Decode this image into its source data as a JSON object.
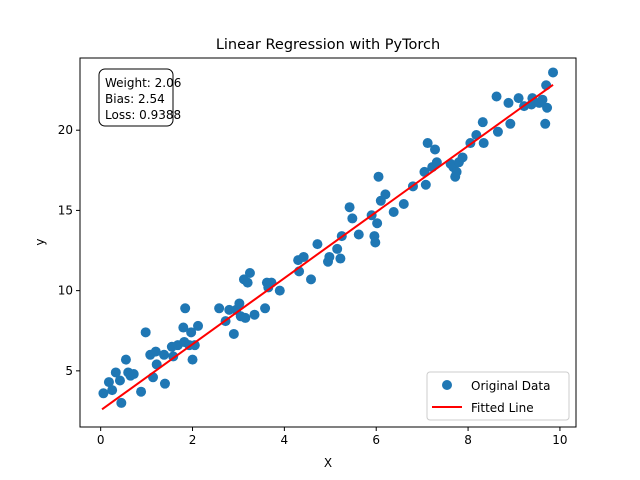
{
  "chart_data": {
    "type": "scatter",
    "title": "Linear Regression with PyTorch",
    "xlabel": "X",
    "ylabel": "y",
    "xlim": [
      -0.45,
      10.35
    ],
    "ylim": [
      1.5,
      24.5
    ],
    "x_ticks": [
      0,
      2,
      4,
      6,
      8,
      10
    ],
    "y_ticks": [
      5,
      10,
      15,
      20
    ],
    "grid": false,
    "legend_position": "lower-right",
    "annotation": {
      "lines": [
        "Weight: 2.06",
        "Bias: 2.54",
        "Loss: 0.9388"
      ]
    },
    "series": [
      {
        "name": "Original Data",
        "type": "scatter",
        "color": "#1f77b4",
        "points": [
          [
            0.06,
            3.6
          ],
          [
            0.18,
            4.3
          ],
          [
            0.25,
            3.8
          ],
          [
            0.33,
            4.9
          ],
          [
            0.42,
            4.4
          ],
          [
            0.45,
            3.0
          ],
          [
            0.55,
            5.7
          ],
          [
            0.6,
            4.9
          ],
          [
            0.65,
            4.7
          ],
          [
            0.72,
            4.8
          ],
          [
            0.88,
            3.7
          ],
          [
            0.98,
            7.4
          ],
          [
            1.08,
            6.0
          ],
          [
            1.14,
            4.6
          ],
          [
            1.2,
            6.2
          ],
          [
            1.22,
            5.4
          ],
          [
            1.38,
            6.0
          ],
          [
            1.4,
            4.2
          ],
          [
            1.55,
            6.5
          ],
          [
            1.58,
            5.9
          ],
          [
            1.68,
            6.6
          ],
          [
            1.8,
            7.7
          ],
          [
            1.82,
            6.8
          ],
          [
            1.84,
            8.9
          ],
          [
            1.93,
            6.6
          ],
          [
            1.97,
            7.4
          ],
          [
            2.0,
            5.7
          ],
          [
            2.05,
            6.6
          ],
          [
            2.12,
            7.8
          ],
          [
            2.58,
            8.9
          ],
          [
            2.72,
            8.1
          ],
          [
            2.8,
            8.8
          ],
          [
            2.9,
            7.3
          ],
          [
            2.95,
            8.8
          ],
          [
            3.02,
            9.2
          ],
          [
            3.05,
            8.4
          ],
          [
            3.12,
            10.7
          ],
          [
            3.15,
            8.3
          ],
          [
            3.2,
            10.5
          ],
          [
            3.25,
            11.1
          ],
          [
            3.35,
            8.5
          ],
          [
            3.58,
            8.9
          ],
          [
            3.62,
            10.5
          ],
          [
            3.65,
            10.2
          ],
          [
            3.72,
            10.5
          ],
          [
            3.9,
            10.0
          ],
          [
            4.3,
            11.9
          ],
          [
            4.32,
            11.2
          ],
          [
            4.42,
            12.1
          ],
          [
            4.58,
            10.7
          ],
          [
            4.72,
            12.9
          ],
          [
            4.95,
            11.8
          ],
          [
            4.98,
            12.1
          ],
          [
            5.15,
            12.6
          ],
          [
            5.22,
            12.0
          ],
          [
            5.25,
            13.4
          ],
          [
            5.42,
            15.2
          ],
          [
            5.48,
            14.5
          ],
          [
            5.62,
            13.5
          ],
          [
            5.9,
            14.7
          ],
          [
            5.96,
            13.4
          ],
          [
            5.98,
            13.0
          ],
          [
            6.02,
            14.2
          ],
          [
            6.05,
            17.1
          ],
          [
            6.1,
            15.6
          ],
          [
            6.2,
            16.0
          ],
          [
            6.38,
            14.9
          ],
          [
            6.6,
            15.4
          ],
          [
            6.8,
            16.5
          ],
          [
            7.05,
            17.4
          ],
          [
            7.08,
            16.6
          ],
          [
            7.12,
            19.2
          ],
          [
            7.22,
            17.7
          ],
          [
            7.28,
            18.8
          ],
          [
            7.32,
            18.0
          ],
          [
            7.62,
            17.9
          ],
          [
            7.68,
            17.7
          ],
          [
            7.72,
            17.1
          ],
          [
            7.75,
            17.4
          ],
          [
            7.8,
            18.0
          ],
          [
            7.88,
            18.3
          ],
          [
            8.05,
            19.2
          ],
          [
            8.18,
            19.7
          ],
          [
            8.32,
            20.5
          ],
          [
            8.34,
            19.2
          ],
          [
            8.62,
            22.1
          ],
          [
            8.65,
            19.9
          ],
          [
            8.88,
            21.7
          ],
          [
            8.92,
            20.4
          ],
          [
            9.1,
            22.0
          ],
          [
            9.22,
            21.5
          ],
          [
            9.38,
            21.6
          ],
          [
            9.4,
            22.0
          ],
          [
            9.55,
            21.7
          ],
          [
            9.62,
            21.9
          ],
          [
            9.68,
            20.4
          ],
          [
            9.7,
            22.8
          ],
          [
            9.72,
            21.4
          ],
          [
            9.85,
            23.6
          ]
        ]
      },
      {
        "name": "Fitted Line",
        "type": "line",
        "color": "#ff0000",
        "weight": 2.06,
        "bias": 2.54,
        "x_range": [
          0.03,
          9.85
        ]
      }
    ]
  }
}
